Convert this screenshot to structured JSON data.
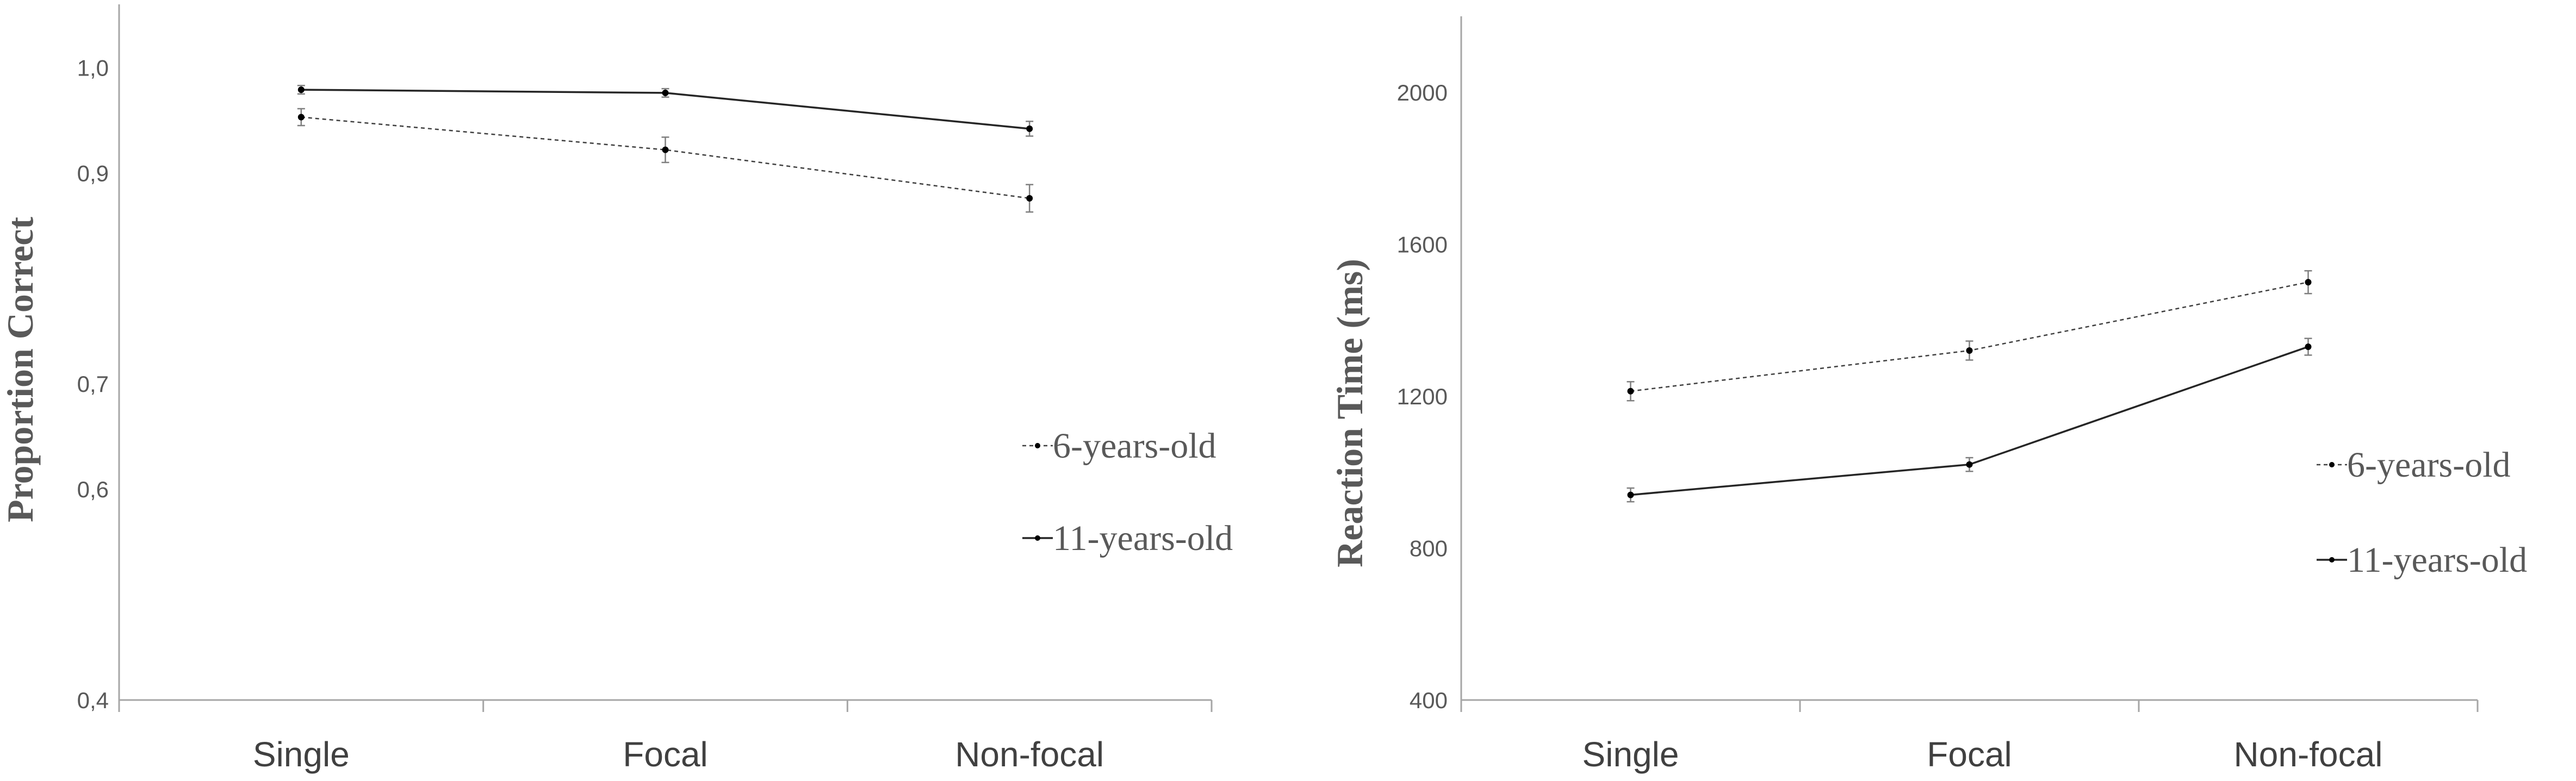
{
  "chart_data": [
    {
      "type": "line",
      "ylabel": "Proportion Correct",
      "xlabel": "",
      "categories": [
        "Single",
        "Focal",
        "Non-focal"
      ],
      "ylim": [
        0.4,
        1.06
      ],
      "yticks": [
        "0,4",
        "0,6",
        "0,7",
        "0,9",
        "1,0"
      ],
      "ytick_values": [
        0.4,
        0.6,
        0.7,
        0.9,
        1.0
      ],
      "grid": false,
      "legend_position": "right",
      "series": [
        {
          "name": "6-years-old",
          "line_style": "dashed",
          "values": [
            0.953,
            0.922,
            0.876
          ],
          "error": [
            0.008,
            0.012,
            0.013
          ]
        },
        {
          "name": "11-years-old",
          "line_style": "solid",
          "values": [
            0.979,
            0.976,
            0.942
          ],
          "error": [
            0.004,
            0.004,
            0.007
          ]
        }
      ]
    },
    {
      "type": "line",
      "ylabel": "Reaction Time (ms)",
      "xlabel": "",
      "categories": [
        "Single",
        "Focal",
        "Non-focal"
      ],
      "ylim": [
        400,
        2200
      ],
      "yticks": [
        "400",
        "800",
        "1200",
        "1600",
        "2000"
      ],
      "ytick_values": [
        400,
        800,
        1200,
        1600,
        2000
      ],
      "grid": false,
      "legend_position": "right",
      "series": [
        {
          "name": "6-years-old",
          "line_style": "dashed",
          "values": [
            1213,
            1320,
            1500
          ],
          "error": [
            25,
            25,
            30
          ]
        },
        {
          "name": "11-years-old",
          "line_style": "solid",
          "values": [
            940,
            1020,
            1330
          ],
          "error": [
            18,
            18,
            22
          ]
        }
      ]
    }
  ]
}
